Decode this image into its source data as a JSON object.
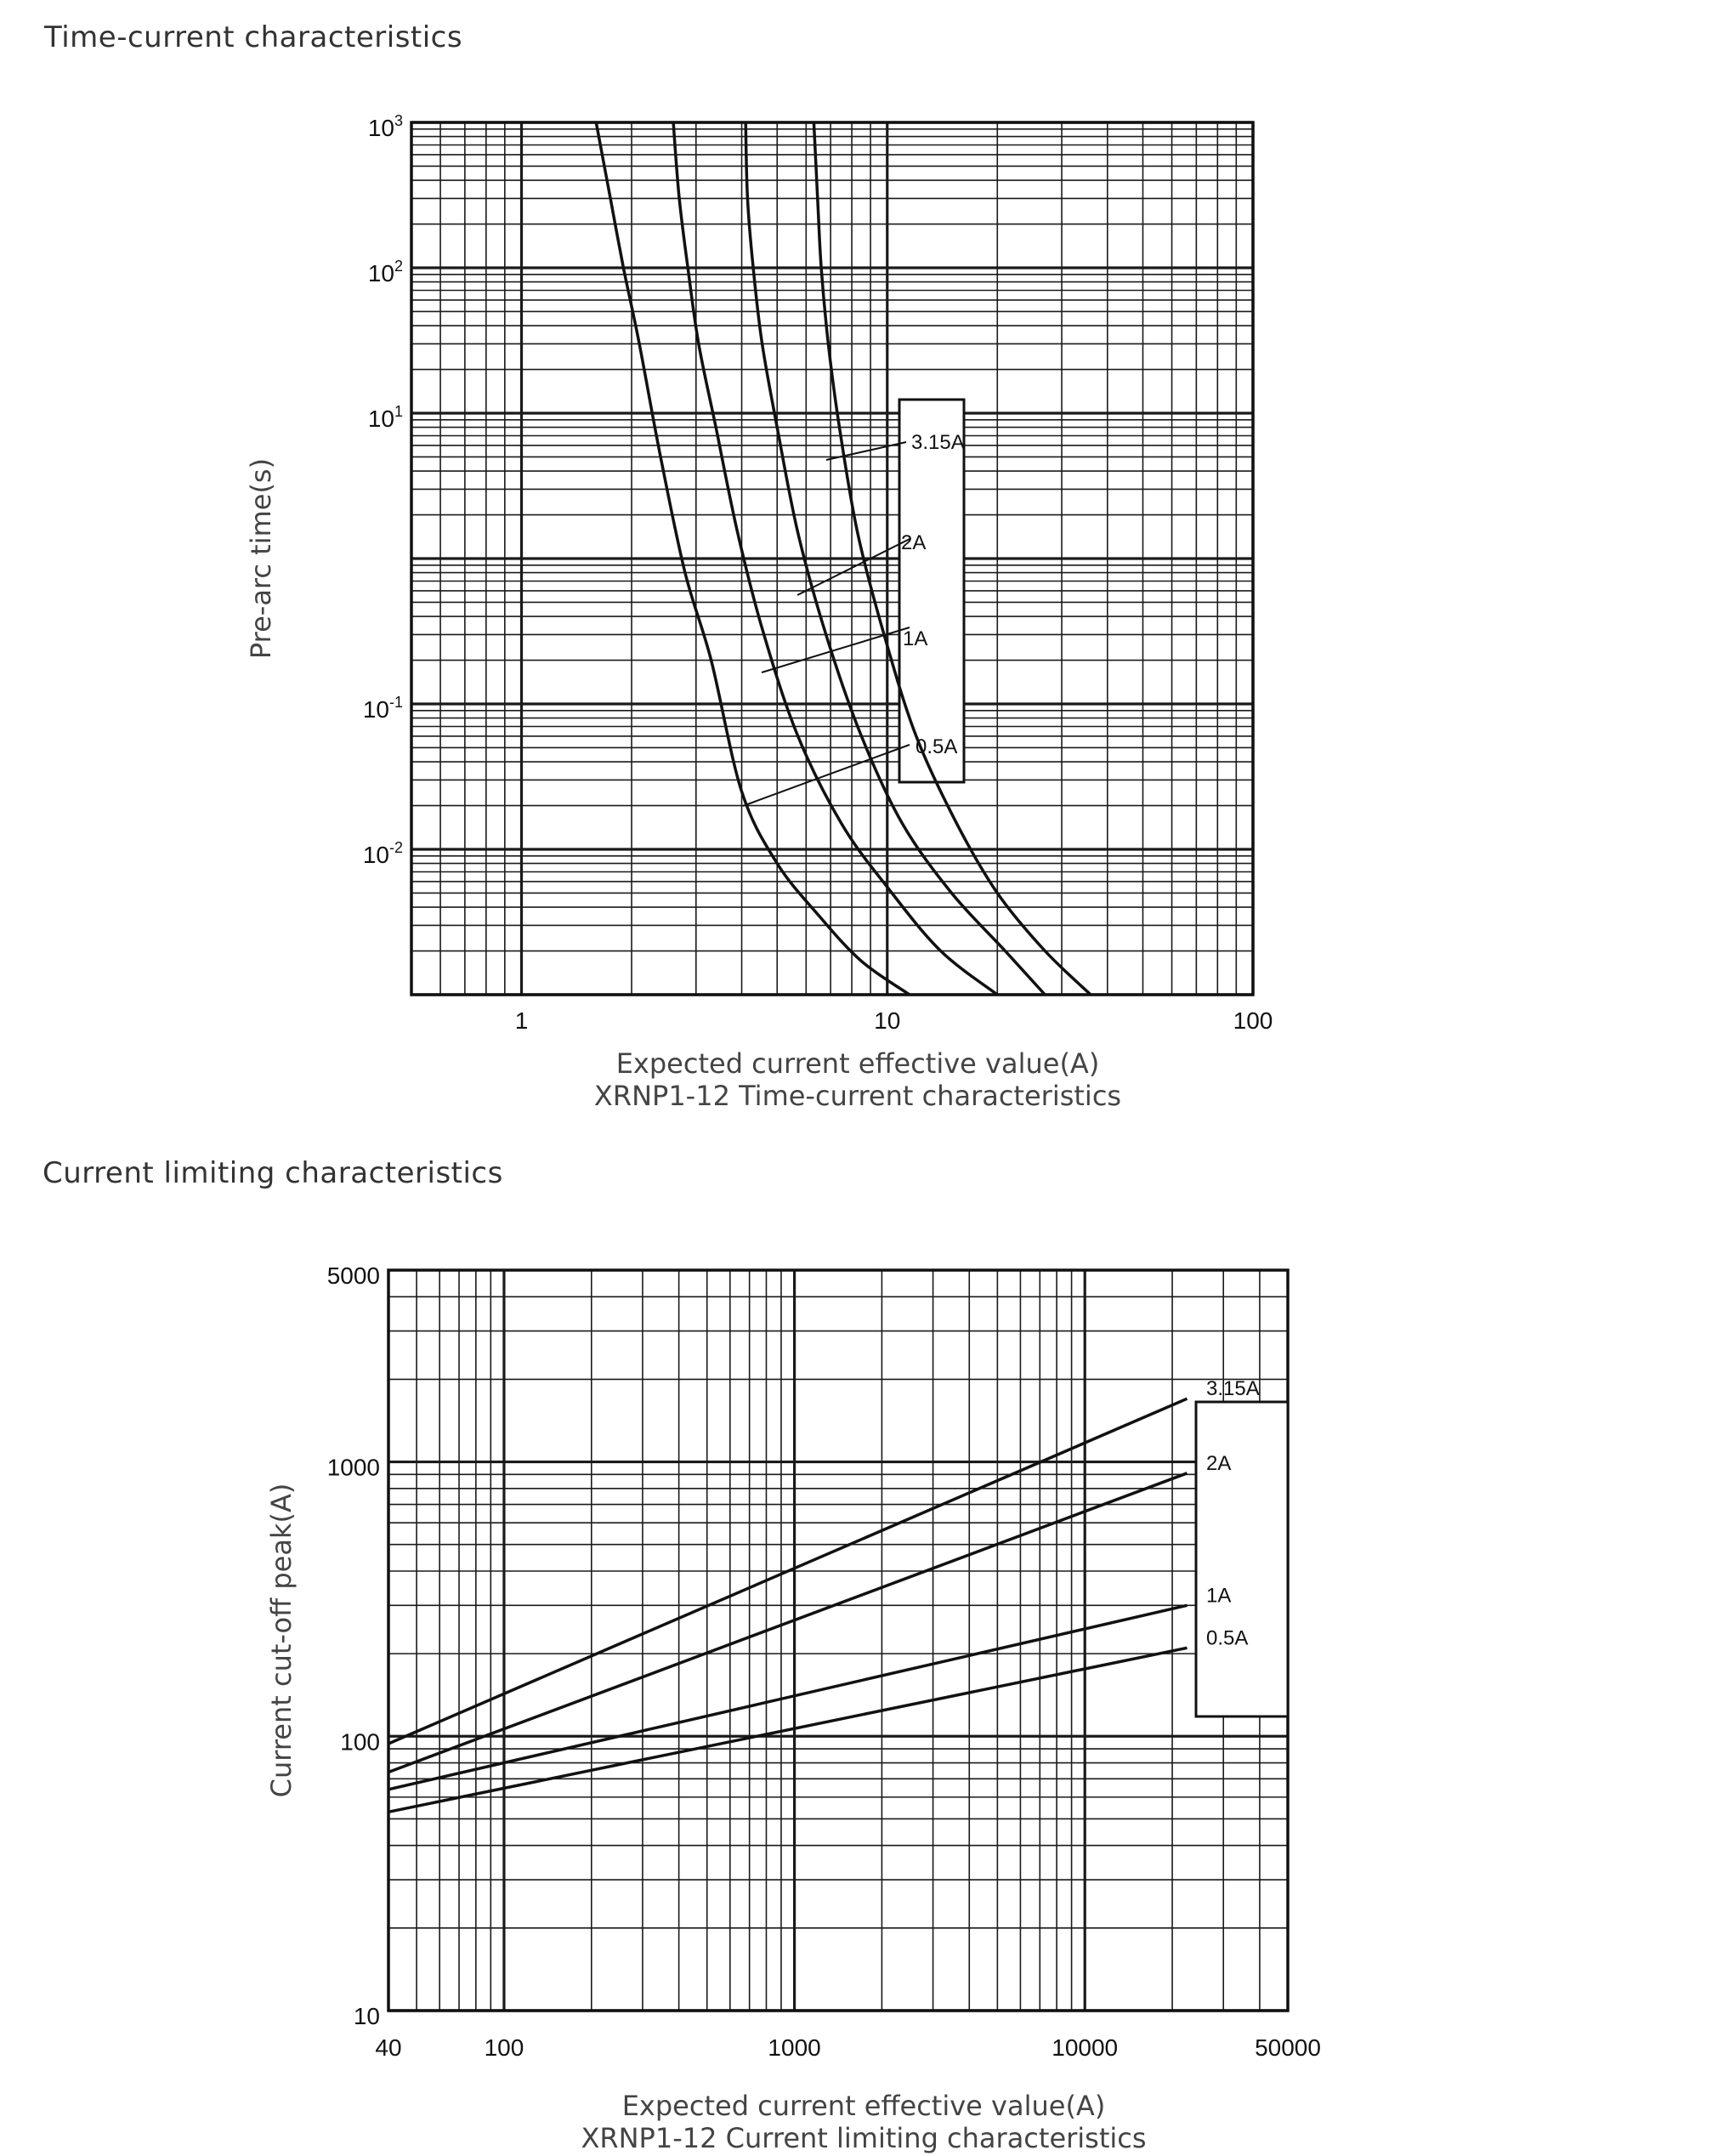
{
  "sections": {
    "time_current_title": "Time-current characteristics",
    "current_limiting_title": "Current limiting characteristics"
  },
  "chart_data": [
    {
      "type": "line",
      "id": "time-current",
      "title": "XRNP1-12 Time-current characteristics",
      "xlabel": "Expected current effective value(A)",
      "ylabel": "Pre-arc time(s)",
      "xscale": "log",
      "yscale": "log",
      "xlim": [
        0.5,
        100
      ],
      "ylim": [
        0.001,
        1000
      ],
      "xticks": [
        {
          "value": 1,
          "label": "1"
        },
        {
          "value": 10,
          "label": "10"
        },
        {
          "value": 100,
          "label": "100"
        }
      ],
      "yticks": [
        {
          "value": 1000,
          "base": "10",
          "exp": "3"
        },
        {
          "value": 100,
          "base": "10",
          "exp": "2"
        },
        {
          "value": 10,
          "base": "10",
          "exp": "1"
        },
        {
          "value": 0.1,
          "base": "10",
          "exp": "-1"
        },
        {
          "value": 0.01,
          "base": "10",
          "exp": "-2"
        }
      ],
      "grid": true,
      "legend_position": "right-center",
      "series": [
        {
          "name": "0.5A",
          "x": [
            1.6,
            1.75,
            1.9,
            2.1,
            2.4,
            2.8,
            3.3,
            4.0,
            5.0,
            6.5,
            8.5,
            11.5
          ],
          "y": [
            1000,
            300,
            100,
            30,
            5,
            0.8,
            0.2,
            0.025,
            0.008,
            0.0035,
            0.0017,
            0.001
          ]
        },
        {
          "name": "1A",
          "x": [
            2.6,
            2.7,
            2.85,
            3.05,
            3.4,
            3.9,
            4.6,
            5.7,
            7.5,
            10,
            14,
            20
          ],
          "y": [
            1000,
            300,
            100,
            30,
            8,
            1.5,
            0.3,
            0.06,
            0.015,
            0.0055,
            0.002,
            0.001
          ]
        },
        {
          "name": "2A",
          "x": [
            4.1,
            4.15,
            4.3,
            4.55,
            5.0,
            5.7,
            6.8,
            8.5,
            11,
            15,
            21,
            27
          ],
          "y": [
            1000,
            300,
            100,
            30,
            8,
            1.5,
            0.3,
            0.06,
            0.015,
            0.005,
            0.002,
            0.001
          ]
        },
        {
          "name": "3.15A",
          "x": [
            6.3,
            6.45,
            6.6,
            6.9,
            7.4,
            8.3,
            9.8,
            12,
            15.5,
            20,
            27,
            36
          ],
          "y": [
            1000,
            300,
            100,
            30,
            8,
            1.5,
            0.3,
            0.06,
            0.015,
            0.005,
            0.002,
            0.001
          ]
        }
      ]
    },
    {
      "type": "line",
      "id": "current-limiting",
      "title": "XRNP1-12 Current limiting characteristics",
      "xlabel": "Expected current effective value(A)",
      "ylabel": "Current cut-off peak(A)",
      "xscale": "log",
      "yscale": "log",
      "xlim": [
        40,
        50000
      ],
      "ylim": [
        10,
        5000
      ],
      "xticks": [
        {
          "value": 40,
          "label": "40"
        },
        {
          "value": 100,
          "label": "100"
        },
        {
          "value": 1000,
          "label": "1000"
        },
        {
          "value": 10000,
          "label": "10000"
        },
        {
          "value": 50000,
          "label": "50000"
        }
      ],
      "yticks": [
        {
          "value": 5000,
          "label": "5000"
        },
        {
          "value": 1000,
          "label": "1000"
        },
        {
          "value": 100,
          "label": "100"
        },
        {
          "value": 10,
          "label": "10"
        }
      ],
      "grid": true,
      "legend_position": "right",
      "series": [
        {
          "name": "3.15A",
          "x": [
            40,
            22500
          ],
          "y": [
            94,
            1700
          ]
        },
        {
          "name": "2A",
          "x": [
            40,
            22500
          ],
          "y": [
            74,
            910
          ]
        },
        {
          "name": "1A",
          "x": [
            40,
            22500
          ],
          "y": [
            64,
            300
          ]
        },
        {
          "name": "0.5A",
          "x": [
            40,
            22500
          ],
          "y": [
            53,
            210
          ]
        }
      ]
    }
  ]
}
